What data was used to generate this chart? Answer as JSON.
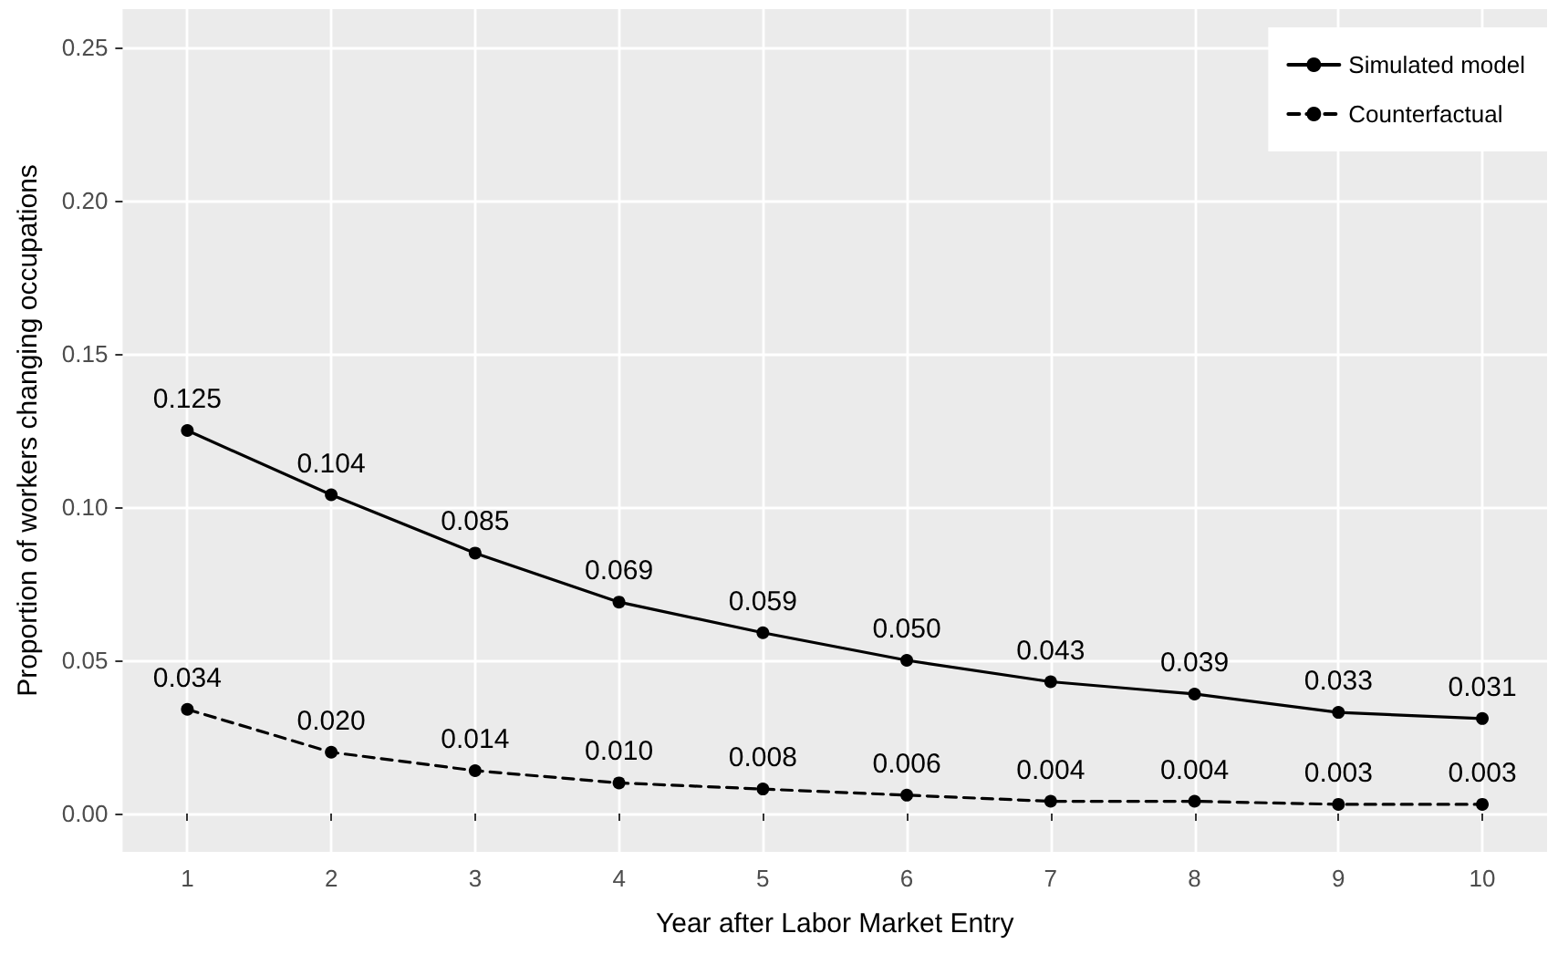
{
  "chart_data": {
    "type": "line",
    "xlabel": "Year after Labor Market Entry",
    "ylabel": "Proportion of workers changing occupations",
    "x": [
      1,
      2,
      3,
      4,
      5,
      6,
      7,
      8,
      9,
      10
    ],
    "series": [
      {
        "name": "Simulated model",
        "color": "#000000",
        "line_style": "solid",
        "values": [
          0.125,
          0.104,
          0.085,
          0.069,
          0.059,
          0.05,
          0.043,
          0.039,
          0.033,
          0.031
        ],
        "value_labels": [
          "0.125",
          "0.104",
          "0.085",
          "0.069",
          "0.059",
          "0.050",
          "0.043",
          "0.039",
          "0.033",
          "0.031"
        ]
      },
      {
        "name": "Counterfactual",
        "color": "#000000",
        "line_style": "dashed",
        "values": [
          0.034,
          0.02,
          0.014,
          0.01,
          0.008,
          0.006,
          0.004,
          0.004,
          0.003,
          0.003
        ],
        "value_labels": [
          "0.034",
          "0.020",
          "0.014",
          "0.010",
          "0.008",
          "0.006",
          "0.004",
          "0.004",
          "0.003",
          "0.003"
        ]
      }
    ],
    "xlim": [
      0.55,
      10.45
    ],
    "xticks": [
      1,
      2,
      3,
      4,
      5,
      6,
      7,
      8,
      9,
      10
    ],
    "ylim": [
      -0.0125,
      0.2625
    ],
    "yticks": [
      {
        "value": 0,
        "label": "0.00"
      },
      {
        "value": 0.05,
        "label": "0.05"
      },
      {
        "value": 0.1,
        "label": "0.10"
      },
      {
        "value": 0.15,
        "label": "0.15"
      },
      {
        "value": 0.2,
        "label": "0.20"
      },
      {
        "value": 0.25,
        "label": "0.25"
      }
    ],
    "grid": true,
    "legend": "top right",
    "marker": "circle"
  }
}
